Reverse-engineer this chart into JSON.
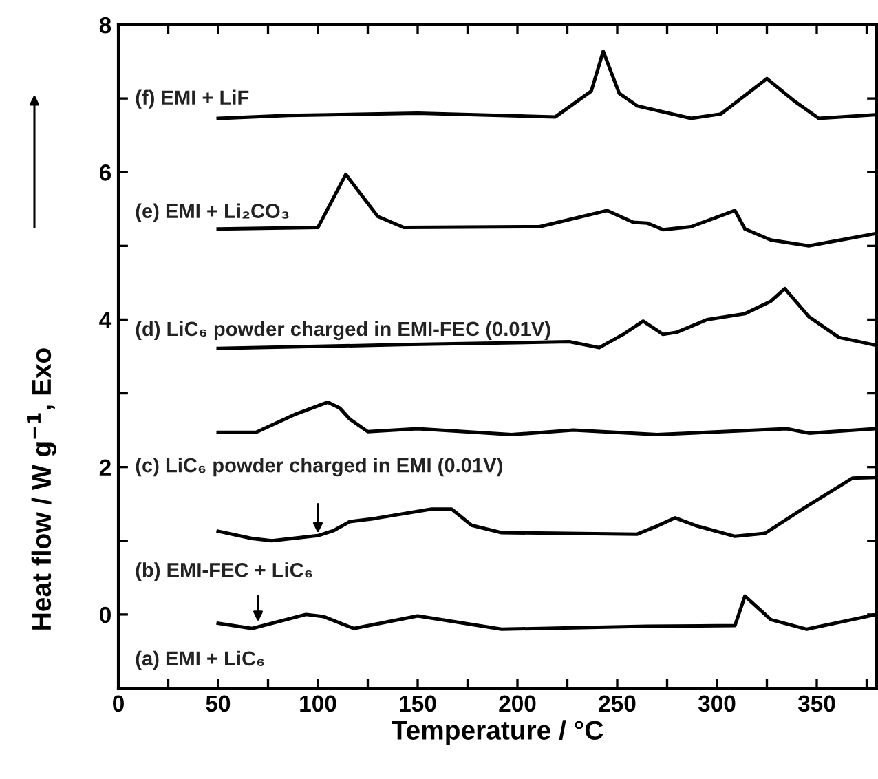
{
  "chart_data": {
    "type": "line",
    "xlabel": "Temperature / °C",
    "ylabel": "Heat flow / W g$^{−1}$, Exo",
    "xlim": [
      0,
      380
    ],
    "ylim": [
      -1,
      8
    ],
    "xticks": [
      0,
      {
        "value": 25,
        "label": null
      },
      50,
      {
        "value": 75,
        "label": null
      },
      100,
      {
        "value": 125,
        "label": null
      },
      150,
      {
        "value": 175,
        "label": null
      },
      200,
      {
        "value": 225,
        "label": null
      },
      250,
      {
        "value": 275,
        "label": null
      },
      300,
      {
        "value": 325,
        "label": null
      },
      350,
      {
        "value": 375,
        "label": null
      }
    ],
    "yticks": [
      0,
      {
        "value": 1,
        "label": null
      },
      2,
      {
        "value": 3,
        "label": null
      },
      4,
      {
        "value": 5,
        "label": null
      },
      6,
      {
        "value": 7,
        "label": null
      },
      8
    ],
    "grid": false,
    "legend": false,
    "marker": "none",
    "line_style": "solid",
    "series": [
      {
        "name": "(f) EMI + LiF",
        "color": "#000000",
        "x": [
          50,
          85,
          150,
          219,
          237,
          243,
          251,
          260,
          287,
          302,
          325,
          339,
          351,
          380
        ],
        "values": [
          6.73,
          6.77,
          6.8,
          6.75,
          7.1,
          7.64,
          7.07,
          6.9,
          6.73,
          6.79,
          7.27,
          6.96,
          6.73,
          6.78
        ]
      },
      {
        "name": "(e) EMI + Li₂CO₃",
        "color": "#000000",
        "x": [
          50,
          100,
          114,
          130,
          143,
          211,
          245,
          258,
          265,
          273,
          287,
          309,
          314,
          327,
          346,
          380
        ],
        "values": [
          5.23,
          5.25,
          5.97,
          5.4,
          5.25,
          5.26,
          5.48,
          5.32,
          5.31,
          5.22,
          5.26,
          5.48,
          5.23,
          5.08,
          5.0,
          5.17
        ]
      },
      {
        "name": "(d) LiC₆ powder charged in EMI-FEC (0.01V)",
        "color": "#000000",
        "x": [
          50,
          142,
          226,
          241,
          253,
          263,
          273,
          280,
          295,
          314,
          327,
          334,
          346,
          361,
          380
        ],
        "values": [
          3.61,
          3.66,
          3.7,
          3.62,
          3.8,
          3.98,
          3.8,
          3.83,
          4.0,
          4.08,
          4.25,
          4.42,
          4.04,
          3.76,
          3.65
        ]
      },
      {
        "name": "(c) LiC₆ powder charged in EMI (0.01V)",
        "color": "#000000",
        "x": [
          50,
          69,
          89,
          105,
          111,
          116,
          125,
          150,
          197,
          228,
          270,
          335,
          346,
          380
        ],
        "values": [
          2.47,
          2.47,
          2.72,
          2.88,
          2.8,
          2.65,
          2.48,
          2.52,
          2.44,
          2.5,
          2.44,
          2.52,
          2.46,
          2.52
        ]
      },
      {
        "name": "(b) EMI-FEC + LiC₆",
        "color": "#000000",
        "x": [
          50,
          67,
          77,
          100,
          108,
          116,
          128,
          157,
          167,
          177,
          192,
          260,
          270,
          279,
          290,
          309,
          324,
          344,
          368,
          380
        ],
        "values": [
          1.13,
          1.03,
          1.0,
          1.07,
          1.14,
          1.26,
          1.3,
          1.43,
          1.43,
          1.21,
          1.11,
          1.09,
          1.2,
          1.31,
          1.2,
          1.06,
          1.1,
          1.45,
          1.85,
          1.86
        ]
      },
      {
        "name": "(a) EMI + LiC₆",
        "color": "#000000",
        "x": [
          50,
          67,
          94,
          103,
          118,
          150,
          192,
          265,
          309,
          314,
          327,
          345,
          380
        ],
        "values": [
          -0.12,
          -0.19,
          0.0,
          -0.03,
          -0.19,
          -0.02,
          -0.2,
          -0.16,
          -0.15,
          0.25,
          -0.07,
          -0.2,
          0.0
        ]
      }
    ]
  }
}
